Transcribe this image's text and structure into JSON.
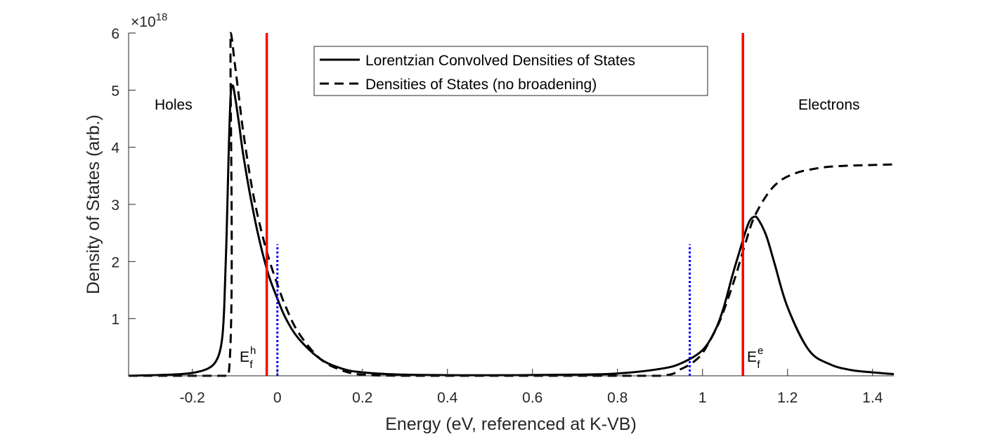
{
  "chart_data": {
    "type": "line",
    "xlabel": "Energy (eV, referenced at K-VB)",
    "ylabel": "Density of States (arb.)",
    "y_exponent_label": "×10",
    "y_exponent": "18",
    "xlim": [
      -0.35,
      1.45
    ],
    "ylim": [
      0,
      6
    ],
    "xticks": [
      -0.2,
      0,
      0.2,
      0.4,
      0.6,
      0.8,
      1,
      1.2,
      1.4
    ],
    "xtick_labels": [
      "-0.2",
      "0",
      "0.2",
      "0.4",
      "0.6",
      "0.8",
      "1",
      "1.2",
      "1.4"
    ],
    "yticks": [
      1,
      2,
      3,
      4,
      5,
      6
    ],
    "ytick_labels": [
      "1",
      "2",
      "3",
      "4",
      "5",
      "6"
    ],
    "grid": false,
    "legend_position": "top-center",
    "series": [
      {
        "name": "Lorentzian Convolved Densities of States",
        "style": "solid",
        "color": "#000000",
        "x": [
          -0.35,
          -0.3,
          -0.25,
          -0.2,
          -0.16,
          -0.14,
          -0.13,
          -0.125,
          -0.12,
          -0.115,
          -0.11,
          -0.105,
          -0.1,
          -0.09,
          -0.08,
          -0.06,
          -0.04,
          -0.02,
          0.0,
          0.02,
          0.05,
          0.1,
          0.15,
          0.2,
          0.3,
          0.5,
          0.7,
          0.8,
          0.9,
          0.95,
          1.0,
          1.03,
          1.05,
          1.07,
          1.09,
          1.1,
          1.11,
          1.12,
          1.13,
          1.15,
          1.17,
          1.2,
          1.25,
          1.3,
          1.35,
          1.4,
          1.45
        ],
        "y": [
          0.0,
          0.01,
          0.02,
          0.05,
          0.14,
          0.32,
          0.65,
          1.2,
          2.3,
          3.8,
          4.9,
          5.08,
          4.9,
          4.4,
          3.85,
          3.0,
          2.3,
          1.75,
          1.35,
          1.0,
          0.65,
          0.3,
          0.13,
          0.06,
          0.02,
          0.01,
          0.02,
          0.04,
          0.12,
          0.22,
          0.45,
          0.8,
          1.2,
          1.75,
          2.25,
          2.5,
          2.7,
          2.78,
          2.75,
          2.45,
          1.95,
          1.2,
          0.45,
          0.2,
          0.1,
          0.06,
          0.03
        ]
      },
      {
        "name": "Densities of States (no broadening)",
        "style": "dashed",
        "color": "#000000",
        "x": [
          -0.35,
          -0.2,
          -0.115,
          -0.11,
          -0.1,
          -0.09,
          -0.08,
          -0.06,
          -0.04,
          -0.02,
          0.0,
          0.02,
          0.05,
          0.1,
          0.15,
          0.2,
          0.3,
          0.5,
          0.7,
          0.9,
          0.95,
          0.98,
          1.0,
          1.02,
          1.04,
          1.06,
          1.08,
          1.1,
          1.12,
          1.15,
          1.18,
          1.22,
          1.26,
          1.3,
          1.35,
          1.4,
          1.45
        ],
        "y": [
          0.0,
          0.0,
          0.0,
          6.0,
          5.45,
          4.85,
          4.25,
          3.3,
          2.6,
          2.05,
          1.6,
          1.2,
          0.75,
          0.3,
          0.1,
          0.02,
          0.0,
          0.0,
          0.0,
          0.0,
          0.12,
          0.25,
          0.4,
          0.65,
          0.95,
          1.35,
          1.8,
          2.3,
          2.75,
          3.15,
          3.4,
          3.55,
          3.62,
          3.66,
          3.68,
          3.69,
          3.7
        ]
      }
    ],
    "vertical_lines": [
      {
        "x": -0.025,
        "color": "#ff0000",
        "style": "solid",
        "y_top": 6
      },
      {
        "x": 1.095,
        "color": "#ff0000",
        "style": "solid",
        "y_top": 6
      },
      {
        "x": 0.0,
        "color": "#0000ff",
        "style": "dotted",
        "y_top": 2.3
      },
      {
        "x": 0.97,
        "color": "#0000ff",
        "style": "dotted",
        "y_top": 2.3
      }
    ],
    "annotations": {
      "holes": "Holes",
      "electrons": "Electrons",
      "ef_h_main": "E",
      "ef_h_sup": "h",
      "ef_h_sub": "f",
      "ef_e_main": "E",
      "ef_e_sup": "e",
      "ef_e_sub": "f"
    }
  }
}
